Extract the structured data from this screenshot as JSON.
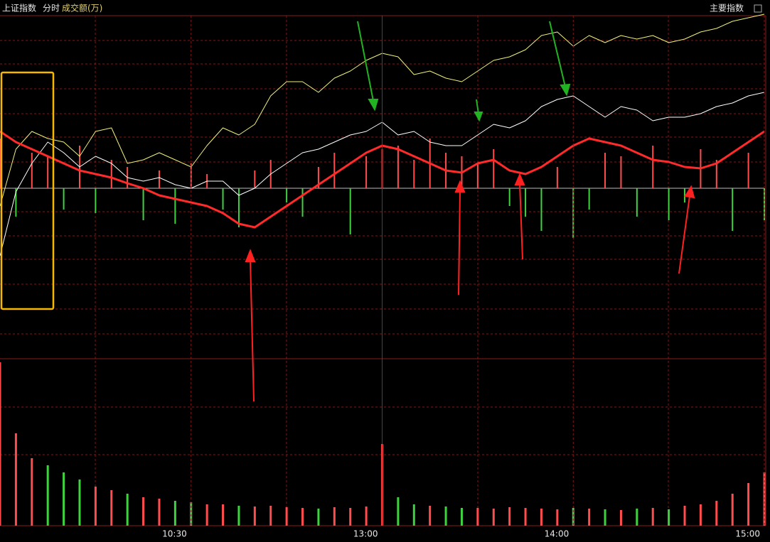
{
  "header": {
    "title": "上证指数",
    "mode": "分时",
    "indicator": "成交额(万)",
    "menu": "主要指数"
  },
  "chart_data": [
    {
      "type": "line",
      "x": [
        0,
        5,
        10,
        15,
        20,
        25,
        30,
        35,
        40,
        45,
        50,
        55,
        60,
        65,
        70,
        75,
        80,
        85,
        90,
        95,
        100,
        105,
        110,
        115,
        120,
        125,
        130,
        135,
        140,
        145,
        150,
        155,
        160,
        165,
        170,
        175,
        180,
        185,
        190,
        195,
        200,
        205,
        210,
        215,
        220,
        225,
        230,
        235,
        240
      ],
      "xlim": [
        0,
        240
      ],
      "ylim": [
        -240,
        243
      ],
      "series": [
        {
          "color": "#f0f07a",
          "width": 1,
          "values": [
            -25,
            55,
            80,
            70,
            65,
            45,
            80,
            85,
            35,
            40,
            50,
            40,
            30,
            60,
            85,
            75,
            90,
            130,
            150,
            150,
            135,
            155,
            165,
            180,
            190,
            185,
            160,
            165,
            155,
            150,
            165,
            180,
            185,
            195,
            215,
            220,
            200,
            215,
            205,
            215,
            210,
            215,
            205,
            210,
            220,
            225,
            235,
            240,
            245
          ]
        },
        {
          "color": "#ffffff",
          "width": 1,
          "values": [
            -95,
            -5,
            35,
            65,
            50,
            30,
            45,
            35,
            15,
            10,
            15,
            5,
            0,
            10,
            10,
            -10,
            0,
            20,
            35,
            50,
            55,
            65,
            75,
            80,
            93,
            75,
            80,
            65,
            60,
            60,
            75,
            90,
            85,
            95,
            115,
            125,
            130,
            115,
            100,
            115,
            110,
            95,
            100,
            100,
            105,
            115,
            120,
            130,
            135
          ]
        },
        {
          "color": "#ff2a2a",
          "width": 3,
          "values": [
            80,
            65,
            55,
            45,
            35,
            25,
            20,
            15,
            7,
            0,
            -10,
            -15,
            -20,
            -25,
            -35,
            -50,
            -55,
            -40,
            -25,
            -10,
            5,
            20,
            35,
            50,
            60,
            55,
            45,
            35,
            25,
            22,
            35,
            40,
            25,
            20,
            30,
            45,
            60,
            70,
            65,
            60,
            50,
            40,
            37,
            30,
            28,
            35,
            50,
            65,
            80
          ]
        }
      ]
    },
    {
      "type": "bar",
      "up_color": "#ff4d4d",
      "down_color": "#3fd13f",
      "x": [
        0,
        5,
        10,
        15,
        20,
        25,
        30,
        35,
        40,
        45,
        50,
        55,
        60,
        65,
        70,
        75,
        80,
        85,
        90,
        95,
        100,
        105,
        110,
        115,
        120,
        125,
        130,
        135,
        140,
        145,
        150,
        155,
        160,
        165,
        170,
        175,
        180,
        185,
        190,
        195,
        200,
        205,
        210,
        215,
        220,
        225,
        230,
        235,
        240
      ],
      "xlim": [
        0,
        240
      ],
      "ylim": [
        -240,
        243
      ],
      "values": [
        70,
        -40,
        50,
        45,
        -30,
        60,
        -35,
        40,
        30,
        -45,
        25,
        -50,
        35,
        20,
        -30,
        -55,
        25,
        40,
        -20,
        -40,
        30,
        50,
        -65,
        45,
        55,
        60,
        40,
        70,
        50,
        45,
        35,
        55,
        -25,
        -40,
        -60,
        30,
        -70,
        -30,
        50,
        45,
        -40,
        60,
        -45,
        -20,
        55,
        40,
        -60,
        50,
        -45
      ]
    },
    {
      "type": "bar",
      "up_color": "#ff4d4d",
      "down_color": "#3fd13f",
      "x": [
        0,
        5,
        10,
        15,
        20,
        25,
        30,
        35,
        40,
        45,
        50,
        55,
        60,
        65,
        70,
        75,
        80,
        85,
        90,
        95,
        100,
        105,
        110,
        115,
        120,
        125,
        130,
        135,
        140,
        145,
        150,
        155,
        160,
        165,
        170,
        175,
        180,
        185,
        190,
        195,
        200,
        205,
        210,
        215,
        220,
        225,
        230,
        235,
        240
      ],
      "xlim": [
        0,
        240
      ],
      "ylim": [
        0,
        235
      ],
      "xticks": [
        {
          "value": 60,
          "label": "10:30"
        },
        {
          "value": 120,
          "label": "13:00"
        },
        {
          "value": 180,
          "label": "14:00"
        },
        {
          "value": 240,
          "label": "15:00"
        }
      ],
      "values": [
        230,
        130,
        95,
        85,
        75,
        65,
        55,
        50,
        45,
        40,
        38,
        35,
        33,
        30,
        30,
        28,
        27,
        28,
        26,
        25,
        24,
        26,
        25,
        27,
        115,
        40,
        30,
        28,
        27,
        25,
        25,
        24,
        26,
        25,
        24,
        23,
        25,
        24,
        23,
        22,
        24,
        25,
        23,
        28,
        30,
        35,
        45,
        60,
        75
      ]
    }
  ]
}
